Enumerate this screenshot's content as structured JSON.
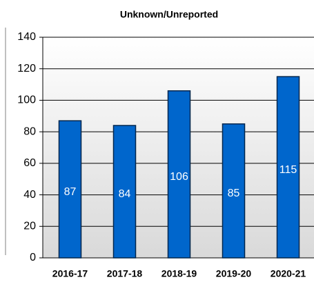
{
  "chart_data": {
    "type": "bar",
    "title": "Unknown/Unreported",
    "categories": [
      "2016-17",
      "2017-18",
      "2018-19",
      "2019-20",
      "2020-21"
    ],
    "values": [
      87,
      84,
      106,
      85,
      115
    ],
    "color": "#0066cc",
    "ylim": [
      0,
      140
    ],
    "yticks": [
      0,
      20,
      40,
      60,
      80,
      100,
      120,
      140
    ],
    "grid": true
  }
}
